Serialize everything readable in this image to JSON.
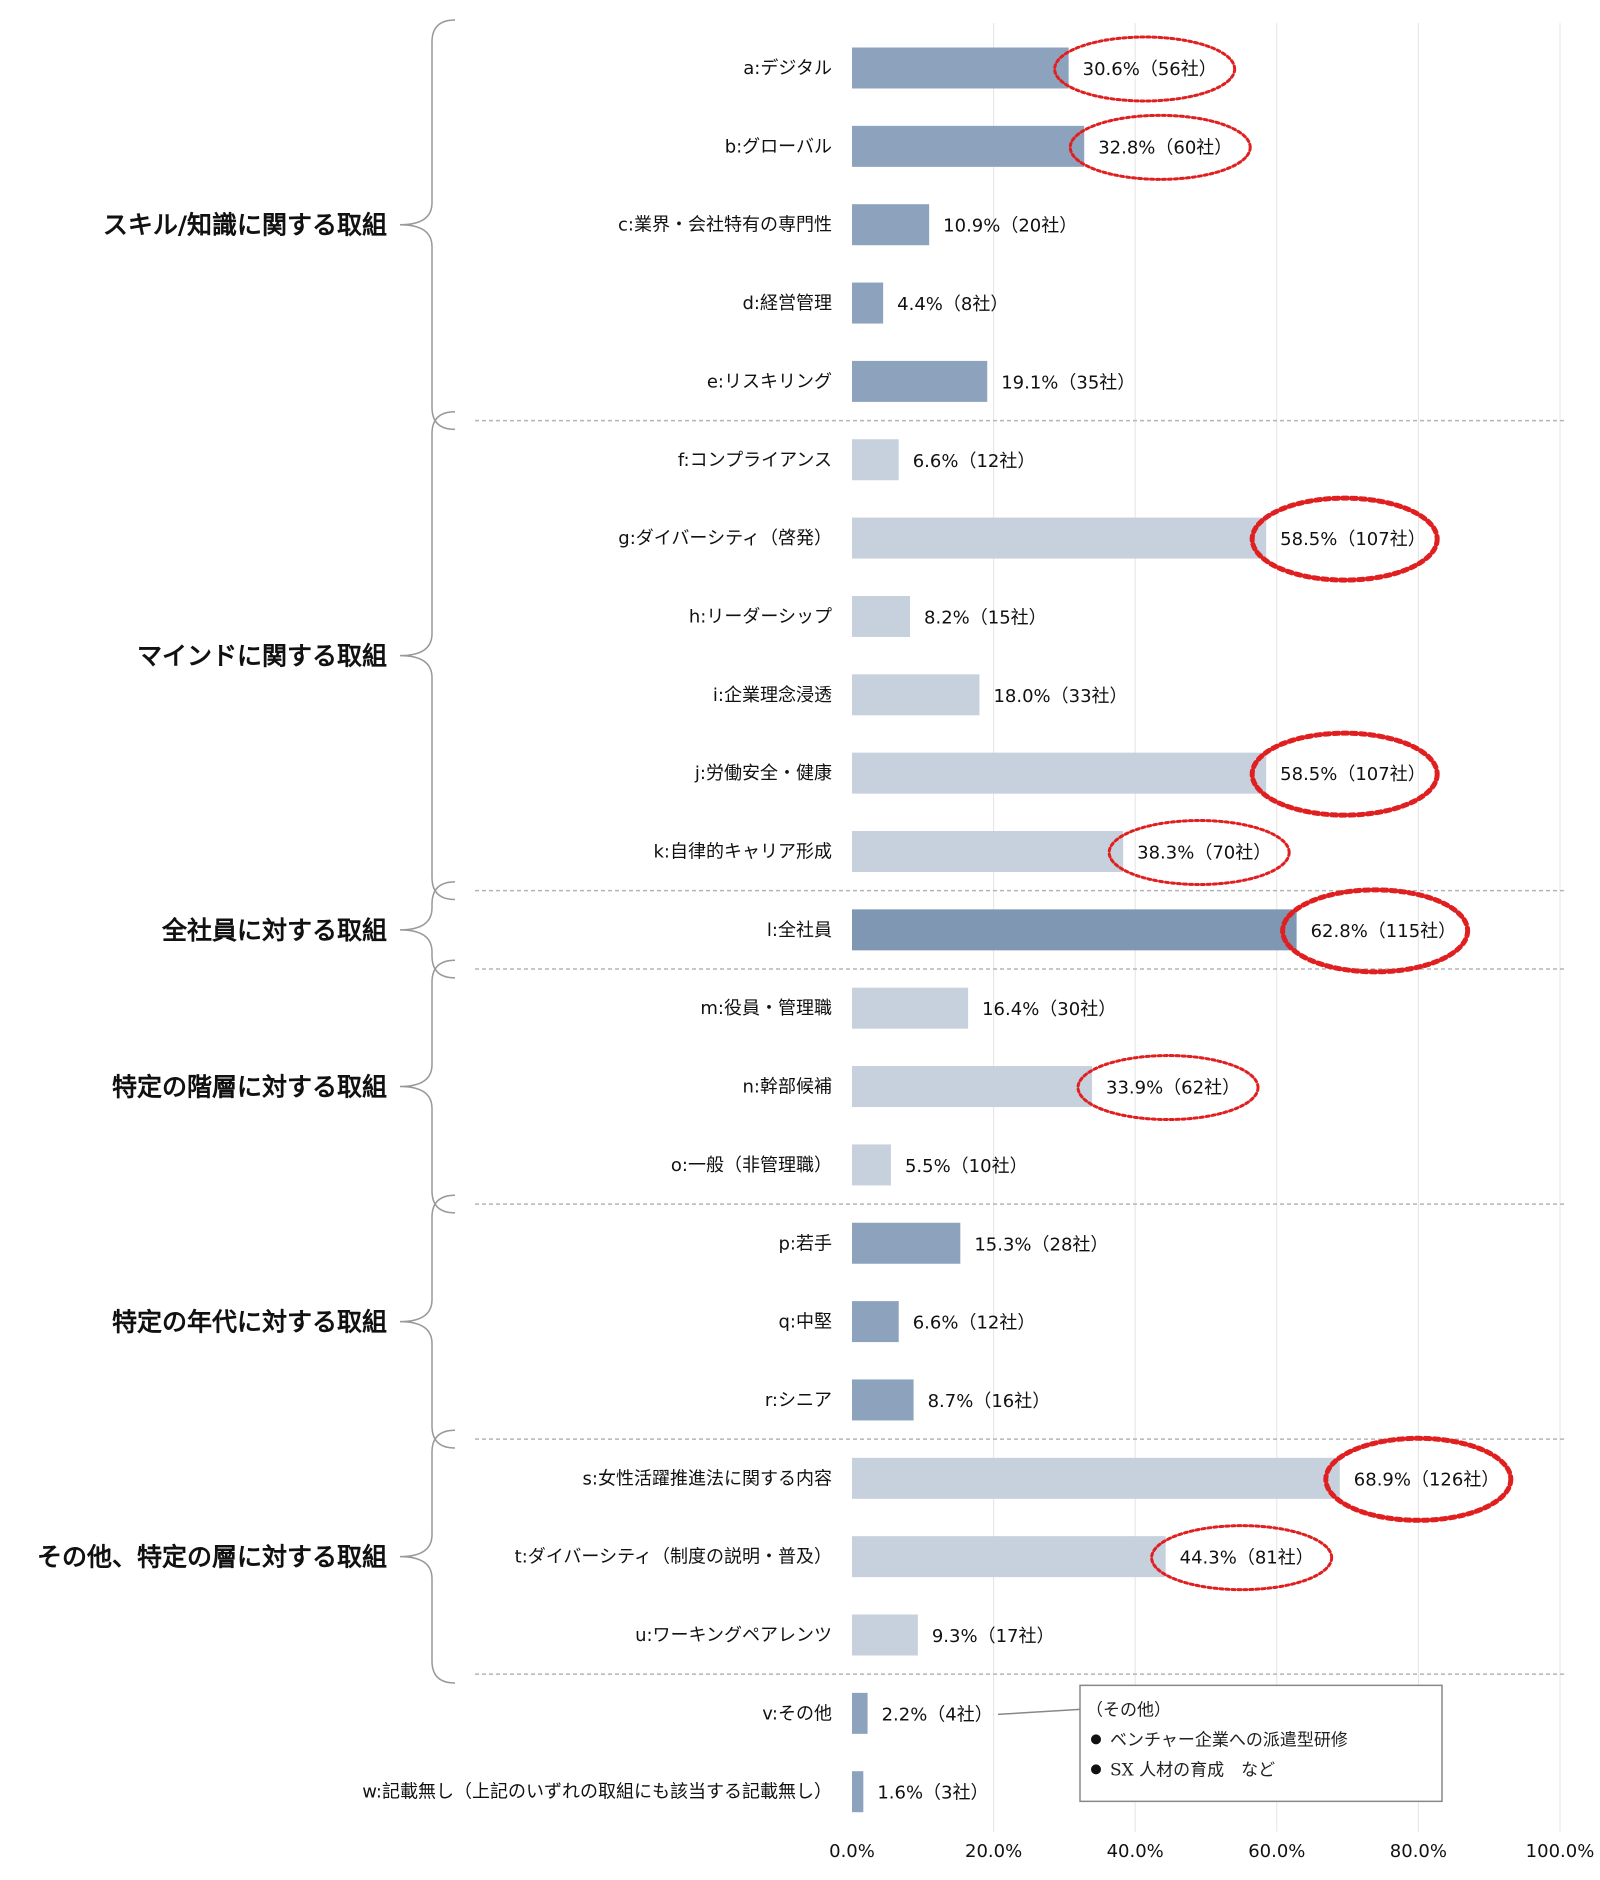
{
  "chart_data": {
    "type": "bar",
    "orientation": "horizontal",
    "title": "",
    "xlabel": "",
    "ylabel": "",
    "xlim": [
      0,
      100
    ],
    "x_ticks": [
      "0.0%",
      "20.0%",
      "40.0%",
      "60.0%",
      "80.0%",
      "100.0%"
    ],
    "grid": "vertical",
    "colors": {
      "dark": "#8da3bd",
      "light": "#c6d1dd",
      "darker": "#7f97b3",
      "highlight": "#e02020"
    },
    "groups": [
      {
        "name": "スキル/知識に関する取組",
        "items": [
          0,
          4
        ]
      },
      {
        "name": "マインドに関する取組",
        "items": [
          5,
          10
        ]
      },
      {
        "name": "全社員に対する取組",
        "items": [
          11,
          11
        ]
      },
      {
        "name": "特定の階層に対する取組",
        "items": [
          12,
          14
        ]
      },
      {
        "name": "特定の年代に対する取組",
        "items": [
          15,
          17
        ]
      },
      {
        "name": "その他、特定の層に対する取組",
        "items": [
          18,
          20
        ]
      }
    ],
    "bars": [
      {
        "category": "a:デジタル",
        "value": 30.6,
        "label": "30.6%（56社）",
        "shade": "dark",
        "highlight": "thin"
      },
      {
        "category": "b:グローバル",
        "value": 32.8,
        "label": "32.8%（60社）",
        "shade": "dark",
        "highlight": "thin"
      },
      {
        "category": "c:業界・会社特有の専門性",
        "value": 10.9,
        "label": "10.9%（20社）",
        "shade": "dark",
        "highlight": "none"
      },
      {
        "category": "d:経営管理",
        "value": 4.4,
        "label": "4.4%（8社）",
        "shade": "dark",
        "highlight": "none"
      },
      {
        "category": "e:リスキリング",
        "value": 19.1,
        "label": "19.1%（35社）",
        "shade": "dark",
        "highlight": "none"
      },
      {
        "category": "f:コンプライアンス",
        "value": 6.6,
        "label": "6.6%（12社）",
        "shade": "light",
        "highlight": "none"
      },
      {
        "category": "g:ダイバーシティ（啓発）",
        "value": 58.5,
        "label": "58.5%（107社）",
        "shade": "light",
        "highlight": "thick"
      },
      {
        "category": "h:リーダーシップ",
        "value": 8.2,
        "label": "8.2%（15社）",
        "shade": "light",
        "highlight": "none"
      },
      {
        "category": "i:企業理念浸透",
        "value": 18.0,
        "label": "18.0%（33社）",
        "shade": "light",
        "highlight": "none"
      },
      {
        "category": "j:労働安全・健康",
        "value": 58.5,
        "label": "58.5%（107社）",
        "shade": "light",
        "highlight": "thick"
      },
      {
        "category": "k:自律的キャリア形成",
        "value": 38.3,
        "label": "38.3%（70社）",
        "shade": "light",
        "highlight": "thin"
      },
      {
        "category": "l:全社員",
        "value": 62.8,
        "label": "62.8%（115社）",
        "shade": "darker",
        "highlight": "thick"
      },
      {
        "category": "m:役員・管理職",
        "value": 16.4,
        "label": "16.4%（30社）",
        "shade": "light",
        "highlight": "none"
      },
      {
        "category": "n:幹部候補",
        "value": 33.9,
        "label": "33.9%（62社）",
        "shade": "light",
        "highlight": "thin"
      },
      {
        "category": "o:一般（非管理職）",
        "value": 5.5,
        "label": "5.5%（10社）",
        "shade": "light",
        "highlight": "none"
      },
      {
        "category": "p:若手",
        "value": 15.3,
        "label": "15.3%（28社）",
        "shade": "dark",
        "highlight": "none"
      },
      {
        "category": "q:中堅",
        "value": 6.6,
        "label": "6.6%（12社）",
        "shade": "dark",
        "highlight": "none"
      },
      {
        "category": "r:シニア",
        "value": 8.7,
        "label": "8.7%（16社）",
        "shade": "dark",
        "highlight": "none"
      },
      {
        "category": "s:女性活躍推進法に関する内容",
        "value": 68.9,
        "label": "68.9%（126社）",
        "shade": "light",
        "highlight": "thick"
      },
      {
        "category": "t:ダイバーシティ（制度の説明・普及）",
        "value": 44.3,
        "label": "44.3%（81社）",
        "shade": "light",
        "highlight": "thin"
      },
      {
        "category": "u:ワーキングペアレンツ",
        "value": 9.3,
        "label": "9.3%（17社）",
        "shade": "light",
        "highlight": "none"
      },
      {
        "category": "v:その他",
        "value": 2.2,
        "label": "2.2%（4社）",
        "shade": "dark",
        "highlight": "none"
      },
      {
        "category": "w:記載無し（上記のいずれの取組にも該当する記載無し）",
        "value": 1.6,
        "label": "1.6%（3社）",
        "shade": "dark",
        "highlight": "none"
      }
    ],
    "annotation": {
      "attached_to": "v:その他",
      "title": "（その他）",
      "lines": [
        "ベンチャー企業への派遣型研修",
        "SX 人材の育成　など"
      ]
    }
  }
}
